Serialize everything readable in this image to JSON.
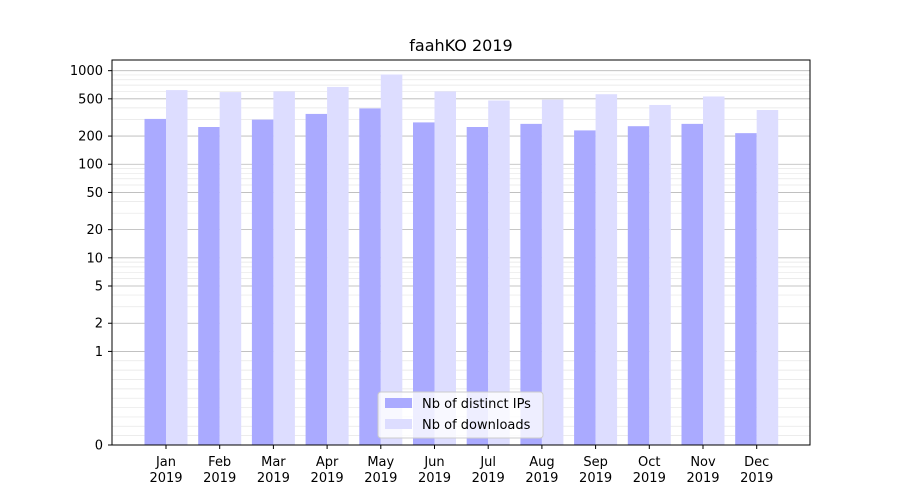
{
  "chart_data": {
    "type": "bar",
    "title": "faahKO 2019",
    "xlabel": "",
    "ylabel": "",
    "yscale": "symlog",
    "ylim": [
      0,
      1300
    ],
    "yticks": [
      0,
      1,
      2,
      5,
      10,
      20,
      50,
      100,
      200,
      500,
      1000
    ],
    "ytick_labels": [
      "0",
      "1",
      "2",
      "5",
      "10",
      "20",
      "50",
      "100",
      "200",
      "500",
      "1000"
    ],
    "categories": [
      "Jan\n2019",
      "Feb\n2019",
      "Mar\n2019",
      "Apr\n2019",
      "May\n2019",
      "Jun\n2019",
      "Jul\n2019",
      "Aug\n2019",
      "Sep\n2019",
      "Oct\n2019",
      "Nov\n2019",
      "Dec\n2019"
    ],
    "grid": true,
    "legend_position": "bottom-center",
    "series": [
      {
        "name": "Nb of distinct IPs",
        "color": "#aaaaff",
        "values": [
          305,
          250,
          300,
          345,
          395,
          280,
          250,
          270,
          230,
          255,
          270,
          215
        ]
      },
      {
        "name": "Nb of downloads",
        "color": "#ddddff",
        "values": [
          620,
          590,
          600,
          670,
          910,
          600,
          480,
          490,
          560,
          430,
          530,
          380
        ]
      }
    ]
  }
}
